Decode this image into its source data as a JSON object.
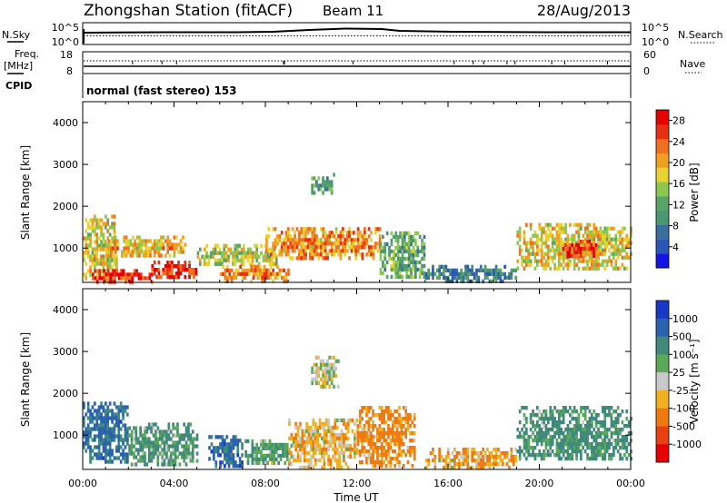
{
  "header": {
    "station": "Zhongshan Station (fitACF)",
    "beam": "Beam 11",
    "date": "28/Aug/2013"
  },
  "strips": {
    "nsky_label": "N.Sky",
    "nsearch_label": "N.Search",
    "nsky_ticks": [
      "10^5",
      "10^0"
    ],
    "nsearch_ticks": [
      "10^5",
      "10^0"
    ],
    "freq_label": "Freq.",
    "freq_unit": "[MHz]",
    "freq_ticks": [
      "18",
      "8"
    ],
    "nave_label": "Nave",
    "nave_ticks": [
      "60",
      "0"
    ],
    "cpid_label": "CPID",
    "cpid_text": "normal (fast stereo) 153"
  },
  "axes": {
    "xlabel": "Time UT",
    "ylabel": "Slant Range [km]",
    "xticks": [
      "00:00",
      "04:00",
      "08:00",
      "12:00",
      "16:00",
      "20:00",
      "00:00"
    ],
    "yticks": [
      "1000",
      "2000",
      "3000",
      "4000"
    ]
  },
  "chart_data": [
    {
      "type": "heatmap",
      "name": "power",
      "x_range_hours": [
        0,
        24
      ],
      "y_range_km": [
        180,
        4500
      ],
      "colorbar_label": "Power [dB]",
      "colorbar_ticks": [
        "4",
        "8",
        "12",
        "16",
        "20",
        "24",
        "28"
      ],
      "colorbar_range": [
        0,
        30
      ],
      "colormap": [
        "#1414e6",
        "#2a56b8",
        "#3a6fa0",
        "#4a9870",
        "#5aa46a",
        "#8cc850",
        "#e6d230",
        "#f0a020",
        "#f07020",
        "#e83010",
        "#e60000"
      ],
      "echo_regions": [
        {
          "t": [
            0.0,
            1.5
          ],
          "r": [
            300,
            1800
          ],
          "value": 18
        },
        {
          "t": [
            0.4,
            3.0
          ],
          "r": [
            220,
            500
          ],
          "value": 26
        },
        {
          "t": [
            1.0,
            4.5
          ],
          "r": [
            800,
            1300
          ],
          "value": 20
        },
        {
          "t": [
            3.0,
            5.0
          ],
          "r": [
            300,
            700
          ],
          "value": 27
        },
        {
          "t": [
            5.0,
            8.5
          ],
          "r": [
            600,
            1100
          ],
          "value": 16
        },
        {
          "t": [
            6.0,
            9.0
          ],
          "r": [
            250,
            600
          ],
          "value": 22
        },
        {
          "t": [
            8.0,
            13.0
          ],
          "r": [
            800,
            1500
          ],
          "value": 21
        },
        {
          "t": [
            10.0,
            11.0
          ],
          "r": [
            2300,
            2800
          ],
          "value": 10
        },
        {
          "t": [
            13.0,
            15.0
          ],
          "r": [
            300,
            1400
          ],
          "value": 12
        },
        {
          "t": [
            15.0,
            19.0
          ],
          "r": [
            250,
            600
          ],
          "value": 8
        },
        {
          "t": [
            19.0,
            24.0
          ],
          "r": [
            500,
            1600
          ],
          "value": 18
        },
        {
          "t": [
            21.0,
            22.5
          ],
          "r": [
            800,
            1200
          ],
          "value": 25
        }
      ]
    },
    {
      "type": "heatmap",
      "name": "velocity",
      "x_range_hours": [
        0,
        24
      ],
      "y_range_km": [
        180,
        4500
      ],
      "colorbar_label": "Velocity [m s⁻¹]",
      "colorbar_ticks": [
        "1000",
        "500",
        "100",
        "25",
        "-25",
        "-100",
        "-500",
        "-1000"
      ],
      "colorbar_colors": [
        "#1838c8",
        "#2a62b0",
        "#3f8a7a",
        "#5aa85a",
        "#c8c8c8",
        "#f0b020",
        "#f07a10",
        "#e84010",
        "#e60000"
      ],
      "echo_regions": [
        {
          "t": [
            0.0,
            2.0
          ],
          "r": [
            400,
            1800
          ],
          "value": 600
        },
        {
          "t": [
            2.0,
            5.0
          ],
          "r": [
            300,
            1300
          ],
          "value": 120
        },
        {
          "t": [
            5.5,
            7.0
          ],
          "r": [
            250,
            1000
          ],
          "value": 700
        },
        {
          "t": [
            7.0,
            9.0
          ],
          "r": [
            300,
            900
          ],
          "value": 100
        },
        {
          "t": [
            9.0,
            12.0
          ],
          "r": [
            250,
            1400
          ],
          "value": -60
        },
        {
          "t": [
            10.0,
            11.2
          ],
          "r": [
            2200,
            2900
          ],
          "value": 0
        },
        {
          "t": [
            12.0,
            14.5
          ],
          "r": [
            300,
            1700
          ],
          "value": -150
        },
        {
          "t": [
            15.0,
            19.0
          ],
          "r": [
            250,
            700
          ],
          "value": -90
        },
        {
          "t": [
            19.0,
            24.0
          ],
          "r": [
            400,
            1700
          ],
          "value": 150
        }
      ]
    }
  ]
}
